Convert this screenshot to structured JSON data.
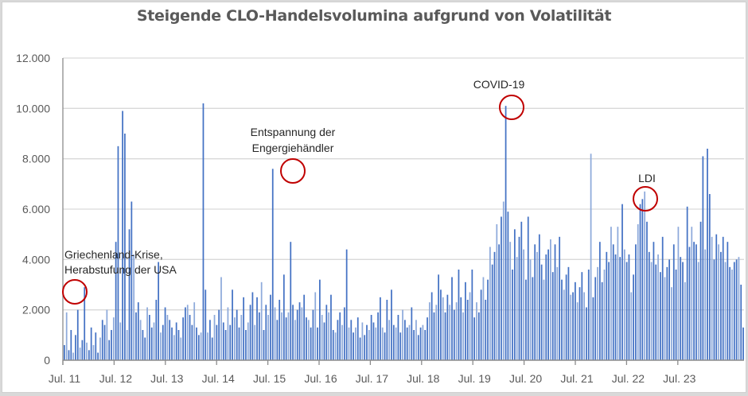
{
  "chart_data": {
    "type": "bar",
    "title": "Steigende CLO-Handelsvolumina aufgrund von Volatilität",
    "xlabel": "",
    "ylabel": "",
    "ylim": [
      0,
      12000
    ],
    "grid": true,
    "legend": "none",
    "yticks": [
      "0",
      "2.000",
      "4.000",
      "6.000",
      "8.000",
      "10.000",
      "12.000"
    ],
    "ytick_values": [
      0,
      2000,
      4000,
      6000,
      8000,
      10000,
      12000
    ],
    "xticks": [
      "Jul. 11",
      "Jul. 12",
      "Jul. 13",
      "Jul. 14",
      "Jul. 15",
      "Jul. 16",
      "Jul. 17",
      "Jul. 18",
      "Jul. 19",
      "Jul. 20",
      "Jul. 21",
      "Jul. 22",
      "Jul. 23"
    ],
    "x_start": "Jul. 11",
    "x_end": "Dez. 23",
    "bars_per_year": 26,
    "values": [
      600,
      1900,
      400,
      1200,
      300,
      1000,
      2000,
      500,
      800,
      2900,
      700,
      400,
      1300,
      600,
      1100,
      300,
      900,
      1600,
      1400,
      2000,
      800,
      1200,
      1700,
      4700,
      8500,
      1500,
      9900,
      9000,
      1200,
      5200,
      6300,
      4200,
      1900,
      2300,
      1600,
      1200,
      900,
      2100,
      1800,
      1300,
      1500,
      2400,
      3900,
      1100,
      1400,
      2100,
      1800,
      1600,
      1300,
      1000,
      1500,
      1200,
      900,
      1700,
      2100,
      2200,
      1800,
      1400,
      2300,
      1300,
      1000,
      1100,
      10200,
      2800,
      1100,
      1600,
      900,
      1800,
      1400,
      2000,
      3300,
      1500,
      1200,
      2100,
      1400,
      2800,
      1700,
      2000,
      1300,
      1800,
      2500,
      1200,
      1500,
      2200,
      2700,
      1400,
      2500,
      1900,
      3100,
      1200,
      2200,
      1800,
      2600,
      7600,
      2100,
      1600,
      2400,
      1900,
      3400,
      1700,
      1900,
      4700,
      2200,
      1600,
      2000,
      2300,
      2100,
      2600,
      1700,
      1600,
      1300,
      2000,
      2700,
      1300,
      3200,
      1800,
      1500,
      2200,
      1900,
      2600,
      1200,
      1100,
      1600,
      1900,
      1400,
      2100,
      4400,
      1300,
      1600,
      1100,
      1300,
      1700,
      900,
      1500,
      1000,
      1400,
      1200,
      1800,
      1500,
      1300,
      1900,
      2500,
      1300,
      1100,
      2400,
      1600,
      2800,
      1400,
      1300,
      1800,
      1100,
      2000,
      1600,
      1300,
      1400,
      2100,
      1200,
      1600,
      1000,
      1300,
      1400,
      1200,
      1700,
      2300,
      2700,
      1900,
      2200,
      3400,
      2800,
      2500,
      1900,
      2600,
      2200,
      3300,
      2000,
      2300,
      3600,
      2500,
      1900,
      3100,
      2400,
      2700,
      3600,
      1700,
      2300,
      1900,
      2800,
      3300,
      2400,
      3200,
      4500,
      3800,
      4300,
      5400,
      4600,
      5700,
      6300,
      10100,
      5900,
      4700,
      3600,
      5200,
      4100,
      4900,
      5500,
      4400,
      3200,
      5700,
      4000,
      3300,
      4600,
      4300,
      5000,
      3800,
      3200,
      4200,
      4400,
      4800,
      3500,
      4600,
      3700,
      4900,
      3200,
      2800,
      3400,
      3700,
      2600,
      2700,
      3100,
      2300,
      2900,
      3500,
      2700,
      2100,
      3600,
      8200,
      2500,
      3300,
      3700,
      4700,
      3100,
      3600,
      4300,
      3900,
      5300,
      4600,
      4200,
      5300,
      4100,
      6200,
      4400,
      3900,
      4200,
      2700,
      3400,
      4600,
      5400,
      6200,
      6400,
      6700,
      5500,
      4300,
      3900,
      4700,
      3800,
      4200,
      3500,
      4900,
      3300,
      3700,
      4000,
      2900,
      4600,
      3600,
      5300,
      4100,
      3900,
      3100,
      6100,
      4500,
      5300,
      4700,
      4600,
      3900,
      5500,
      8100,
      4400,
      8400,
      6600,
      4900,
      4000,
      5000,
      4600,
      4300,
      4900,
      3900,
      4700,
      3700,
      3600,
      3900,
      4000,
      4100,
      3000,
      1300
    ],
    "annotations": [
      {
        "label_lines": [
          "Griechenland-Krise,",
          "Herabstufung der USA"
        ],
        "target": "Jul. 11 – Aug. 11",
        "value": 2900
      },
      {
        "label_lines": [
          "Entspannung der",
          "Engergiehändler"
        ],
        "target": "Dez. 15",
        "value": 7600
      },
      {
        "label_lines": [
          "COVID-19"
        ],
        "target": "Mär. 20",
        "value": 10100
      },
      {
        "label_lines": [
          "LDI"
        ],
        "target": "Okt. 22",
        "value": 6700
      }
    ],
    "colors": {
      "bar": "#4472c4",
      "bar_light": "#8eaadb",
      "grid": "#d9d9d9",
      "axis": "#8c8c8c",
      "circle": "#c00000"
    }
  }
}
